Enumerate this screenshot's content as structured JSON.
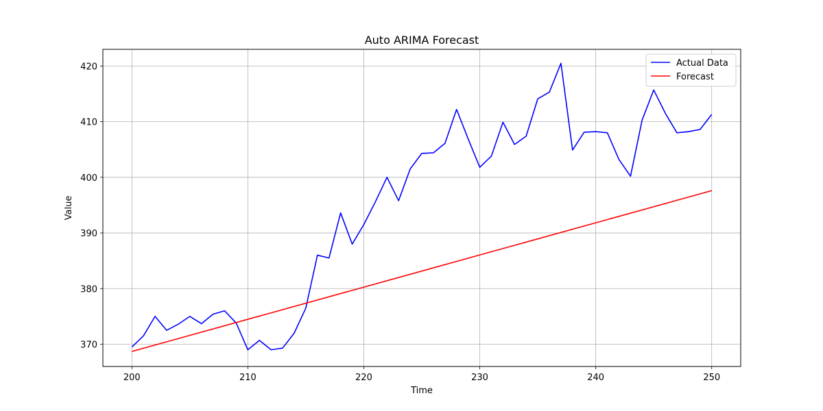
{
  "chart_data": {
    "type": "line",
    "title": "Auto ARIMA Forecast",
    "xlabel": "Time",
    "ylabel": "Value",
    "xlim": [
      197.5,
      252.5
    ],
    "ylim": [
      366,
      423
    ],
    "xticks": [
      200,
      210,
      220,
      230,
      240,
      250
    ],
    "yticks": [
      370,
      380,
      390,
      400,
      410,
      420
    ],
    "grid": true,
    "legend_position": "top-right",
    "series": [
      {
        "name": "Actual Data",
        "color": "#0000ff",
        "x": [
          200,
          201,
          202,
          203,
          204,
          205,
          206,
          207,
          208,
          209,
          210,
          211,
          212,
          213,
          214,
          215,
          216,
          217,
          218,
          219,
          220,
          221,
          222,
          223,
          224,
          225,
          226,
          227,
          228,
          229,
          230,
          231,
          232,
          233,
          234,
          235,
          236,
          237,
          238,
          239,
          240,
          241,
          242,
          243,
          244,
          245,
          246,
          247,
          248,
          249,
          250
        ],
        "values": [
          369.5,
          371.5,
          375.0,
          372.5,
          373.6,
          375.0,
          373.7,
          375.4,
          376.0,
          373.8,
          369.0,
          370.7,
          369.0,
          369.3,
          372.0,
          376.5,
          386.0,
          385.5,
          393.6,
          388.0,
          391.5,
          395.6,
          400.0,
          395.8,
          401.5,
          404.3,
          404.4,
          406.1,
          412.2,
          406.9,
          401.8,
          403.8,
          409.9,
          405.9,
          407.4,
          414.1,
          415.3,
          420.5,
          404.9,
          408.1,
          408.2,
          408.0,
          403.2,
          400.2,
          410.3,
          415.7,
          411.5,
          408.0,
          408.2,
          408.6,
          411.3
        ]
      },
      {
        "name": "Forecast",
        "color": "#ff0000",
        "x": [
          200,
          250
        ],
        "values": [
          368.7,
          397.6
        ]
      }
    ]
  }
}
